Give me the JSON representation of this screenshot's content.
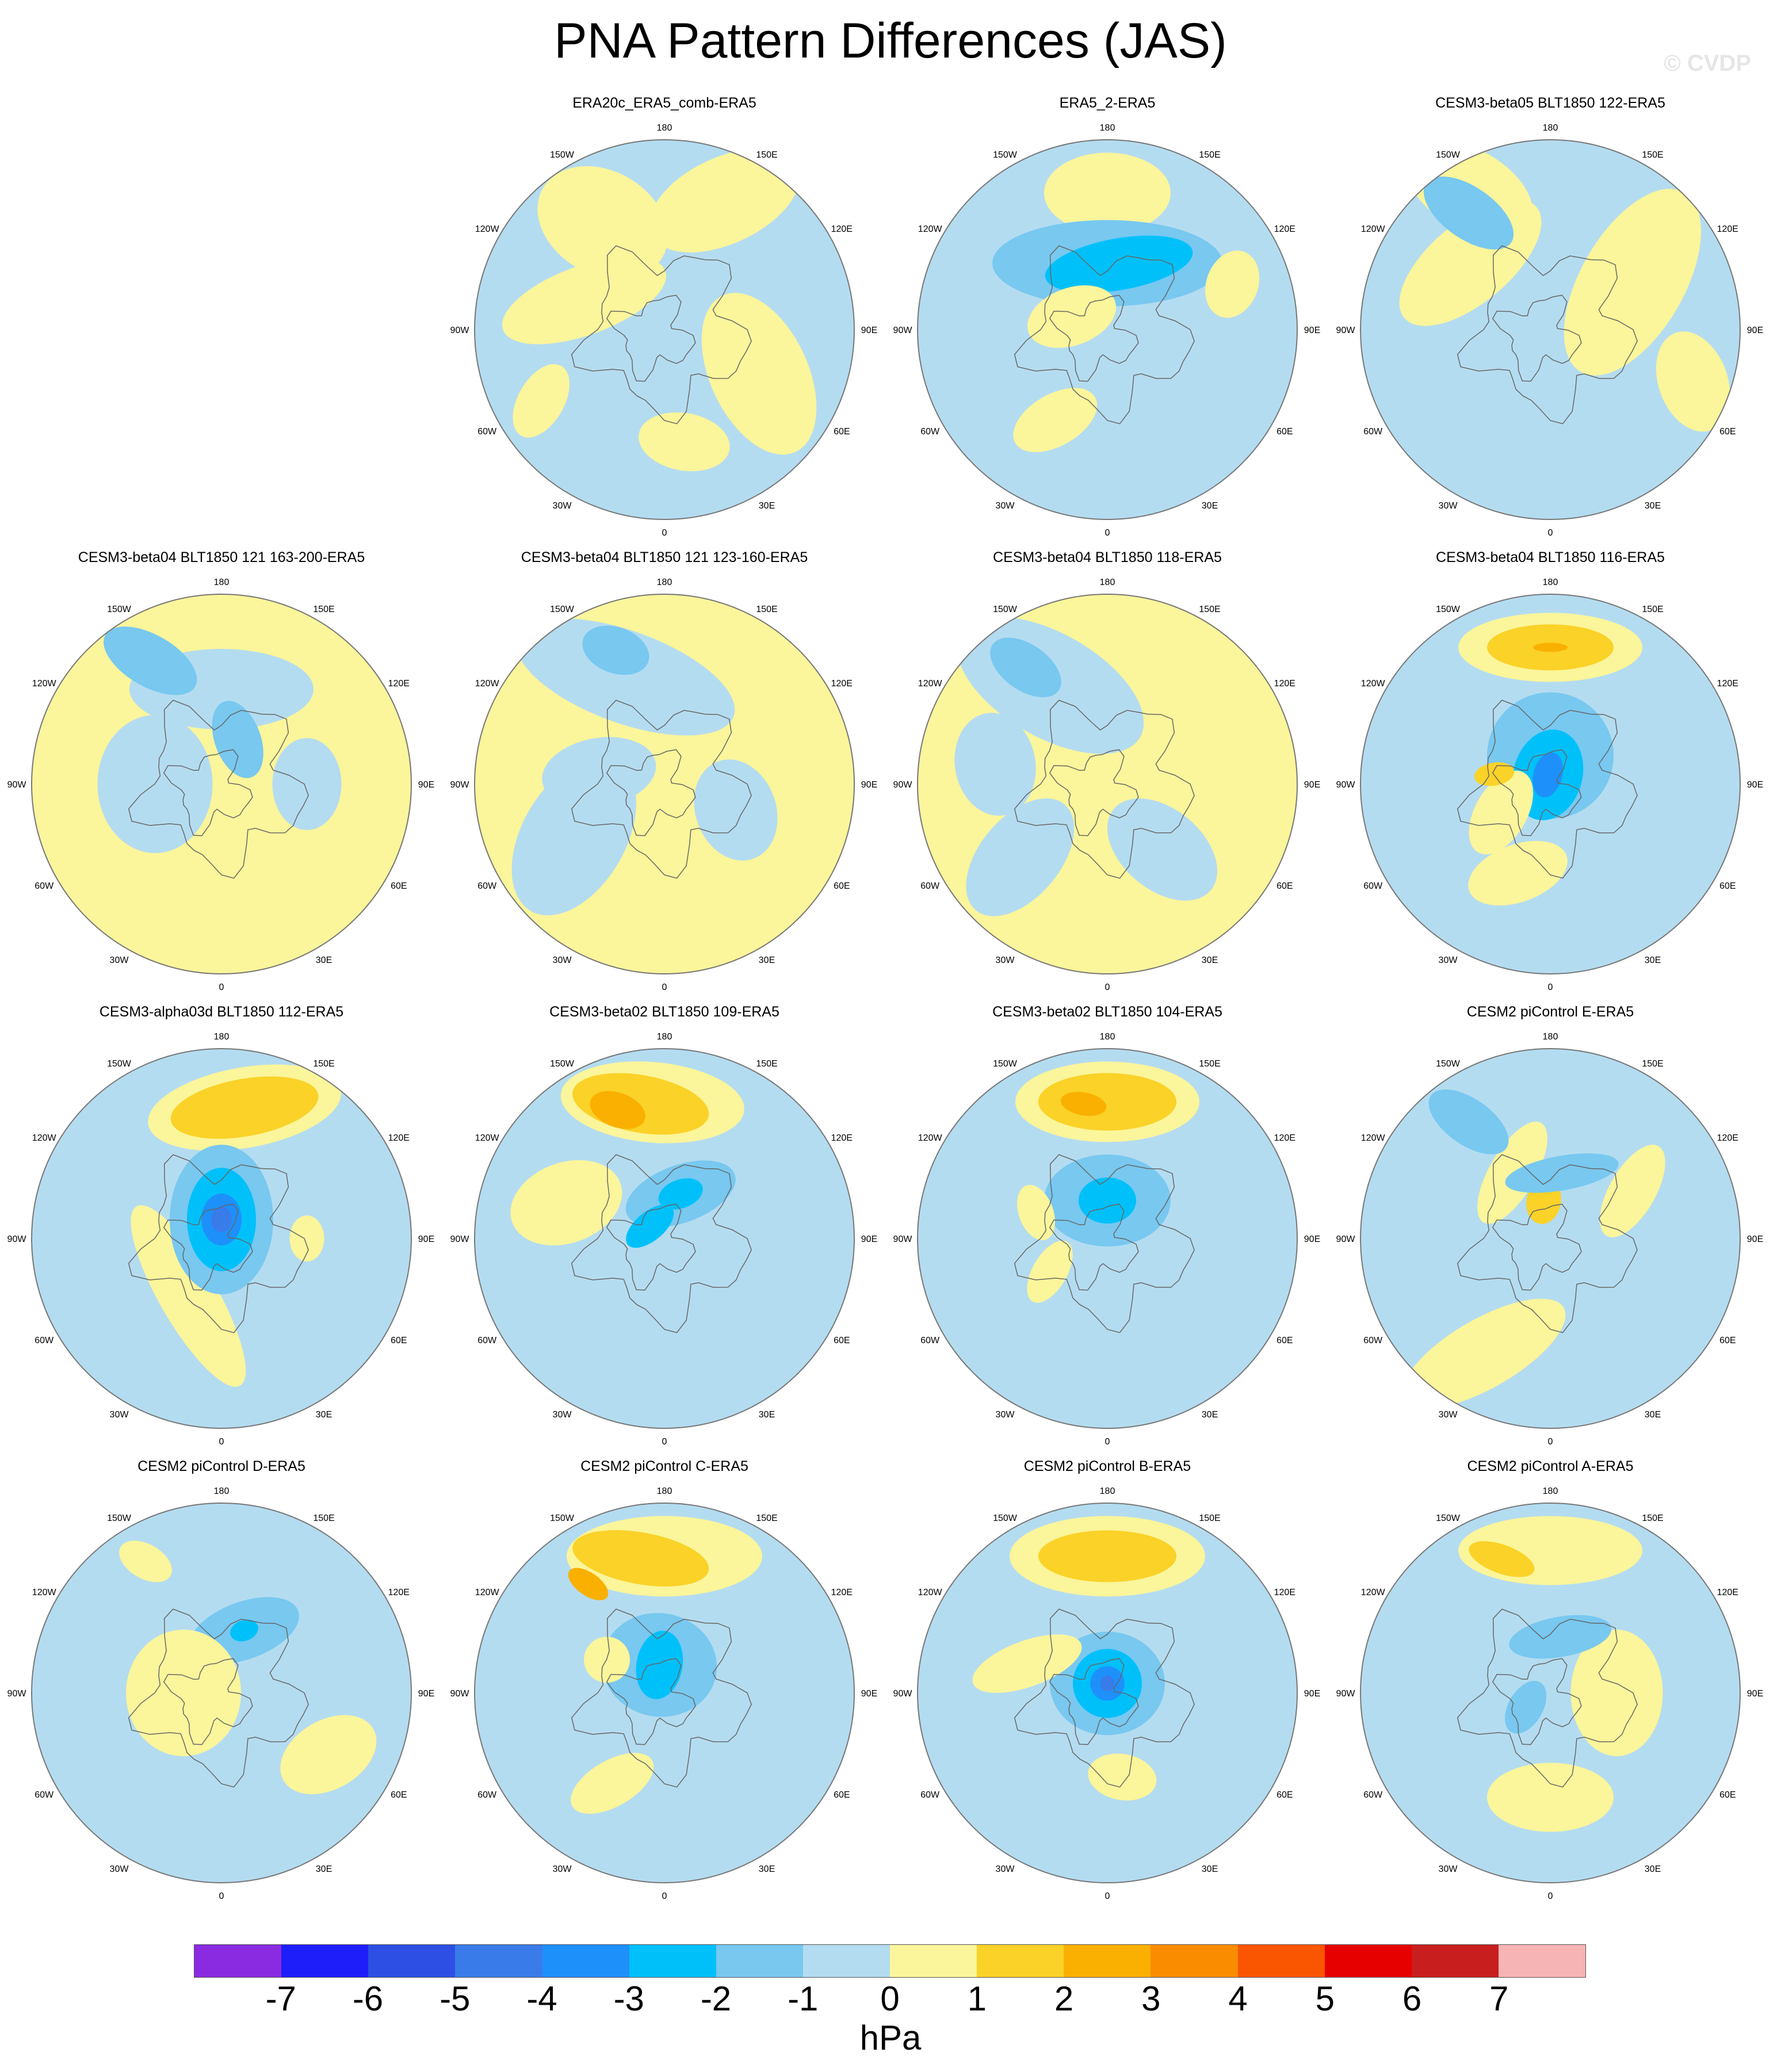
{
  "title": "PNA Pattern Differences (JAS)",
  "copyright": "© CVDP",
  "colors": {
    "neg7": "#8a2be2",
    "neg6": "#1e1efa",
    "neg5": "#2e4fe4",
    "neg4": "#3a7bea",
    "neg3": "#1e90fa",
    "neg2": "#00c0fa",
    "neg1": "#78c8f0",
    "neg0": "#b4dcf0",
    "pos0": "#fbf59b",
    "pos1": "#fad228",
    "pos2": "#fab000",
    "pos3": "#fa8c00",
    "pos4": "#fa5500",
    "pos5": "#e60000",
    "pos6": "#c81e1e",
    "pos7": "#f7b4b4",
    "coast": "#666666",
    "border": "#777777"
  },
  "axis_labels": {
    "top": "180",
    "bottom": "0",
    "left": "90W",
    "right": "90E",
    "upper_left_1": "150W",
    "upper_left_2": "120W",
    "lower_left_1": "60W",
    "lower_left_2": "30W",
    "upper_right_1": "150E",
    "upper_right_2": "120E",
    "lower_right_1": "60E",
    "lower_right_2": "30E"
  },
  "panels": [
    {
      "name": "ERA20c_ERA5_comb-ERA5",
      "base": "neg0",
      "blobs": [
        {
          "a": 115,
          "r": 0.75,
          "rx": 140,
          "ry": 75,
          "level": "pos0"
        },
        {
          "a": 205,
          "r": 0.55,
          "rx": 150,
          "ry": 85,
          "level": "pos0"
        },
        {
          "a": 60,
          "r": 0.65,
          "rx": 120,
          "ry": 90,
          "level": "pos0"
        },
        {
          "a": 20,
          "r": 0.45,
          "rx": 60,
          "ry": 150,
          "level": "pos0"
        },
        {
          "a": 260,
          "r": 0.6,
          "rx": 80,
          "ry": 50,
          "level": "pos0"
        },
        {
          "a": 330,
          "r": 0.75,
          "rx": 70,
          "ry": 40,
          "level": "pos0"
        }
      ]
    },
    {
      "name": "ERA5_2-ERA5",
      "base": "neg0",
      "blobs": [
        {
          "a": 90,
          "r": 0.72,
          "rx": 70,
          "ry": 40,
          "level": "pos1"
        },
        {
          "a": 90,
          "r": 0.72,
          "rx": 110,
          "ry": 70,
          "level": "pos0"
        },
        {
          "a": 90,
          "r": 0.35,
          "rx": 200,
          "ry": 75,
          "level": "neg1"
        },
        {
          "a": 100,
          "r": 0.35,
          "rx": 130,
          "ry": 45,
          "level": "neg2"
        },
        {
          "a": 300,
          "r": 0.55,
          "rx": 80,
          "ry": 45,
          "level": "pos0"
        },
        {
          "a": 20,
          "r": 0.2,
          "rx": 50,
          "ry": 80,
          "level": "pos0"
        },
        {
          "a": 160,
          "r": 0.7,
          "rx": 60,
          "ry": 45,
          "level": "pos0"
        }
      ]
    },
    {
      "name": "CESM3-beta05 BLT1850 122-ERA5",
      "base": "neg0",
      "blobs": [
        {
          "a": 150,
          "r": 0.5,
          "rx": 180,
          "ry": 90,
          "level": "pos0"
        },
        {
          "a": 40,
          "r": 0.55,
          "rx": 70,
          "ry": 150,
          "level": "pos0"
        },
        {
          "a": 60,
          "r": 0.85,
          "rx": 120,
          "ry": 70,
          "level": "pos0"
        },
        {
          "a": 200,
          "r": 0.8,
          "rx": 90,
          "ry": 60,
          "level": "pos0"
        },
        {
          "a": 55,
          "r": 0.75,
          "rx": 90,
          "ry": 45,
          "level": "neg1"
        }
      ]
    },
    {
      "name": "CESM3-beta04 BLT1850 121 163-200-ERA5",
      "base": "pos0",
      "blobs": [
        {
          "a": 90,
          "r": 0.5,
          "rx": 160,
          "ry": 70,
          "level": "neg0"
        },
        {
          "a": 60,
          "r": 0.75,
          "rx": 90,
          "ry": 45,
          "level": "neg1"
        },
        {
          "a": 0,
          "r": 0.35,
          "rx": 120,
          "ry": 100,
          "level": "neg0"
        },
        {
          "a": 180,
          "r": 0.45,
          "rx": 80,
          "ry": 60,
          "level": "neg0"
        },
        {
          "a": 110,
          "r": 0.25,
          "rx": 40,
          "ry": 70,
          "level": "neg1"
        }
      ]
    },
    {
      "name": "CESM3-beta04 BLT1850 121 123-160-ERA5",
      "base": "pos0",
      "blobs": [
        {
          "a": 70,
          "r": 0.6,
          "rx": 200,
          "ry": 80,
          "level": "neg0"
        },
        {
          "a": 70,
          "r": 0.75,
          "rx": 60,
          "ry": 40,
          "level": "neg1"
        },
        {
          "a": 200,
          "r": 0.4,
          "rx": 90,
          "ry": 70,
          "level": "neg0"
        },
        {
          "a": 330,
          "r": 0.55,
          "rx": 150,
          "ry": 90,
          "level": "neg0"
        },
        {
          "a": 10,
          "r": 0.35,
          "rx": 60,
          "ry": 100,
          "level": "neg0"
        }
      ]
    },
    {
      "name": "CESM3-beta04 BLT1850 118-ERA5",
      "base": "pos0",
      "blobs": [
        {
          "a": 60,
          "r": 0.6,
          "rx": 180,
          "ry": 90,
          "level": "neg0"
        },
        {
          "a": 55,
          "r": 0.75,
          "rx": 70,
          "ry": 40,
          "level": "neg1"
        },
        {
          "a": 230,
          "r": 0.45,
          "rx": 110,
          "ry": 70,
          "level": "neg0"
        },
        {
          "a": 320,
          "r": 0.6,
          "rx": 120,
          "ry": 70,
          "level": "neg0"
        },
        {
          "a": 10,
          "r": 0.6,
          "rx": 90,
          "ry": 70,
          "level": "neg0"
        }
      ]
    },
    {
      "name": "CESM3-beta04 BLT1850 116-ERA5",
      "base": "neg0",
      "blobs": [
        {
          "a": 90,
          "r": 0.72,
          "rx": 160,
          "ry": 60,
          "level": "pos0"
        },
        {
          "a": 90,
          "r": 0.72,
          "rx": 110,
          "ry": 40,
          "level": "pos1"
        },
        {
          "a": 90,
          "r": 0.72,
          "rx": 30,
          "ry": 8,
          "level": "pos2"
        },
        {
          "a": 90,
          "r": 0.15,
          "rx": 110,
          "ry": 110,
          "level": "neg1"
        },
        {
          "a": 75,
          "r": 0.05,
          "rx": 60,
          "ry": 80,
          "level": "neg2"
        },
        {
          "a": 75,
          "r": 0.05,
          "rx": 25,
          "ry": 40,
          "level": "neg3"
        },
        {
          "a": 330,
          "r": 0.3,
          "rx": 80,
          "ry": 45,
          "level": "pos0"
        },
        {
          "a": 290,
          "r": 0.5,
          "rx": 90,
          "ry": 50,
          "level": "pos0"
        },
        {
          "a": 10,
          "r": 0.3,
          "rx": 20,
          "ry": 35,
          "level": "pos1"
        }
      ]
    },
    {
      "name": "CESM3-alpha03d BLT1850 112-ERA5",
      "base": "neg0",
      "blobs": [
        {
          "a": 100,
          "r": 0.7,
          "rx": 170,
          "ry": 70,
          "level": "pos0"
        },
        {
          "a": 100,
          "r": 0.7,
          "rx": 130,
          "ry": 50,
          "level": "pos1"
        },
        {
          "a": 300,
          "r": 0.35,
          "rx": 50,
          "ry": 180,
          "level": "pos0"
        },
        {
          "a": 90,
          "r": 0.1,
          "rx": 90,
          "ry": 130,
          "level": "neg1"
        },
        {
          "a": 90,
          "r": 0.1,
          "rx": 60,
          "ry": 90,
          "level": "neg2"
        },
        {
          "a": 90,
          "r": 0.1,
          "rx": 35,
          "ry": 45,
          "level": "neg3"
        },
        {
          "a": 90,
          "r": 0.1,
          "rx": 18,
          "ry": 22,
          "level": "neg4"
        },
        {
          "a": 180,
          "r": 0.45,
          "rx": 40,
          "ry": 30,
          "level": "pos0"
        }
      ]
    },
    {
      "name": "CESM3-beta02 BLT1850 109-ERA5",
      "base": "neg0",
      "blobs": [
        {
          "a": 85,
          "r": 0.72,
          "rx": 160,
          "ry": 70,
          "level": "pos0"
        },
        {
          "a": 80,
          "r": 0.72,
          "rx": 120,
          "ry": 50,
          "level": "pos1"
        },
        {
          "a": 70,
          "r": 0.72,
          "rx": 50,
          "ry": 30,
          "level": "pos2"
        },
        {
          "a": 20,
          "r": 0.55,
          "rx": 70,
          "ry": 100,
          "level": "pos0"
        },
        {
          "a": 110,
          "r": 0.25,
          "rx": 100,
          "ry": 50,
          "level": "neg1"
        },
        {
          "a": 110,
          "r": 0.25,
          "rx": 40,
          "ry": 25,
          "level": "neg2"
        },
        {
          "a": 40,
          "r": 0.1,
          "rx": 25,
          "ry": 50,
          "level": "neg2"
        }
      ]
    },
    {
      "name": "CESM3-beta02 BLT1850 104-ERA5",
      "base": "neg0",
      "blobs": [
        {
          "a": 90,
          "r": 0.72,
          "rx": 160,
          "ry": 70,
          "level": "pos0"
        },
        {
          "a": 90,
          "r": 0.72,
          "rx": 120,
          "ry": 50,
          "level": "pos1"
        },
        {
          "a": 80,
          "r": 0.72,
          "rx": 40,
          "ry": 20,
          "level": "pos2"
        },
        {
          "a": 90,
          "r": 0.2,
          "rx": 110,
          "ry": 80,
          "level": "neg1"
        },
        {
          "a": 90,
          "r": 0.2,
          "rx": 50,
          "ry": 40,
          "level": "neg2"
        },
        {
          "a": 330,
          "r": 0.35,
          "rx": 60,
          "ry": 30,
          "level": "pos0"
        },
        {
          "a": 20,
          "r": 0.4,
          "rx": 50,
          "ry": 30,
          "level": "pos0"
        }
      ]
    },
    {
      "name": "CESM2 piControl E-ERA5",
      "base": "neg0",
      "blobs": [
        {
          "a": 150,
          "r": 0.5,
          "rx": 90,
          "ry": 40,
          "level": "pos0"
        },
        {
          "a": 60,
          "r": 0.4,
          "rx": 40,
          "ry": 100,
          "level": "pos0"
        },
        {
          "a": 80,
          "r": 0.2,
          "rx": 30,
          "ry": 40,
          "level": "pos1"
        },
        {
          "a": 300,
          "r": 0.7,
          "rx": 160,
          "ry": 60,
          "level": "pos0"
        },
        {
          "a": 55,
          "r": 0.75,
          "rx": 80,
          "ry": 40,
          "level": "neg1"
        },
        {
          "a": 100,
          "r": 0.35,
          "rx": 100,
          "ry": 30,
          "level": "neg1"
        }
      ]
    },
    {
      "name": "CESM2 piControl D-ERA5",
      "base": "neg0",
      "blobs": [
        {
          "a": 110,
          "r": 0.35,
          "rx": 100,
          "ry": 50,
          "level": "neg1"
        },
        {
          "a": 110,
          "r": 0.35,
          "rx": 25,
          "ry": 18,
          "level": "neg2"
        },
        {
          "a": 0,
          "r": 0.2,
          "rx": 110,
          "ry": 100,
          "level": "pos0"
        },
        {
          "a": 210,
          "r": 0.65,
          "rx": 60,
          "ry": 90,
          "level": "pos0"
        },
        {
          "a": 60,
          "r": 0.8,
          "rx": 50,
          "ry": 30,
          "level": "pos0"
        }
      ]
    },
    {
      "name": "CESM2 piControl C-ERA5",
      "base": "neg0",
      "blobs": [
        {
          "a": 90,
          "r": 0.72,
          "rx": 170,
          "ry": 70,
          "level": "pos0"
        },
        {
          "a": 80,
          "r": 0.72,
          "rx": 120,
          "ry": 45,
          "level": "pos1"
        },
        {
          "a": 55,
          "r": 0.7,
          "rx": 40,
          "ry": 20,
          "level": "pos2"
        },
        {
          "a": 80,
          "r": 0.15,
          "rx": 100,
          "ry": 90,
          "level": "neg1"
        },
        {
          "a": 80,
          "r": 0.15,
          "rx": 40,
          "ry": 60,
          "level": "neg2"
        },
        {
          "a": 300,
          "r": 0.55,
          "rx": 80,
          "ry": 40,
          "level": "pos0"
        },
        {
          "a": 30,
          "r": 0.35,
          "rx": 40,
          "ry": 40,
          "level": "pos0"
        }
      ]
    },
    {
      "name": "CESM2 piControl B-ERA5",
      "base": "neg0",
      "blobs": [
        {
          "a": 90,
          "r": 0.72,
          "rx": 170,
          "ry": 70,
          "level": "pos0"
        },
        {
          "a": 90,
          "r": 0.72,
          "rx": 120,
          "ry": 45,
          "level": "pos1"
        },
        {
          "a": 90,
          "r": 0.05,
          "rx": 100,
          "ry": 90,
          "level": "neg1"
        },
        {
          "a": 90,
          "r": 0.05,
          "rx": 60,
          "ry": 60,
          "level": "neg2"
        },
        {
          "a": 90,
          "r": 0.05,
          "rx": 30,
          "ry": 30,
          "level": "neg3"
        },
        {
          "a": 90,
          "r": 0.05,
          "rx": 12,
          "ry": 14,
          "level": "neg4"
        },
        {
          "a": 20,
          "r": 0.45,
          "rx": 40,
          "ry": 100,
          "level": "pos0"
        },
        {
          "a": 260,
          "r": 0.45,
          "rx": 60,
          "ry": 40,
          "level": "pos0"
        }
      ]
    },
    {
      "name": "CESM2 piControl A-ERA5",
      "base": "neg0",
      "blobs": [
        {
          "a": 90,
          "r": 0.75,
          "rx": 160,
          "ry": 60,
          "level": "pos0"
        },
        {
          "a": 70,
          "r": 0.75,
          "rx": 60,
          "ry": 25,
          "level": "pos1"
        },
        {
          "a": 180,
          "r": 0.35,
          "rx": 110,
          "ry": 80,
          "level": "pos0"
        },
        {
          "a": 270,
          "r": 0.55,
          "rx": 110,
          "ry": 60,
          "level": "pos0"
        },
        {
          "a": 100,
          "r": 0.3,
          "rx": 90,
          "ry": 35,
          "level": "neg1"
        },
        {
          "a": 330,
          "r": 0.15,
          "rx": 50,
          "ry": 30,
          "level": "neg1"
        }
      ]
    }
  ],
  "colorbar": {
    "boxes": [
      "neg7",
      "neg6",
      "neg5",
      "neg4",
      "neg3",
      "neg2",
      "neg1",
      "neg0",
      "pos0",
      "pos1",
      "pos2",
      "pos3",
      "pos4",
      "pos5",
      "pos6",
      "pos7"
    ],
    "ticks": [
      "-7",
      "-6",
      "-5",
      "-4",
      "-3",
      "-2",
      "-1",
      "0",
      "1",
      "2",
      "3",
      "4",
      "5",
      "6",
      "7"
    ],
    "units": "hPa"
  }
}
